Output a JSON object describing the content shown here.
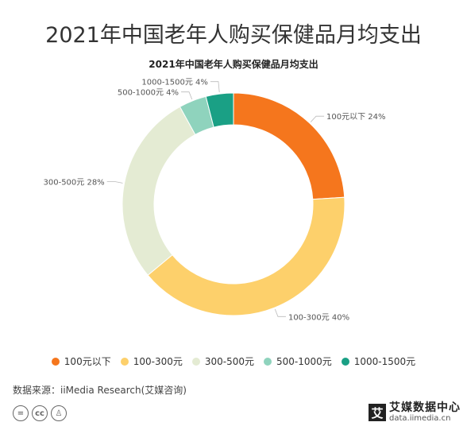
{
  "page_title": "2021年中国老年人购买保健品月均支出",
  "source": "数据来源：iiMedia Research(艾媒咨询)",
  "brand": {
    "name": "艾媒数据中心",
    "url": "data.iimedia.cn",
    "logo_char": "艾"
  },
  "license_icons": [
    "equals-icon",
    "cc-icon",
    "person-icon"
  ],
  "chart_data": {
    "type": "pie",
    "title": "2021年中国老年人购买保健品月均支出",
    "donut": true,
    "categories": [
      "100元以下",
      "100-300元",
      "300-500元",
      "500-1000元",
      "1000-1500元"
    ],
    "values": [
      24,
      40,
      28,
      4,
      4
    ],
    "labels": [
      "100元以下 24%",
      "100-300元 40%",
      "300-500元 28%",
      "500-1000元 4%",
      "1000-1500元 4%"
    ],
    "colors": [
      "#f5761d",
      "#fdd06b",
      "#e4ebd3",
      "#8fd3bd",
      "#1aa085"
    ],
    "legend_position": "bottom"
  }
}
